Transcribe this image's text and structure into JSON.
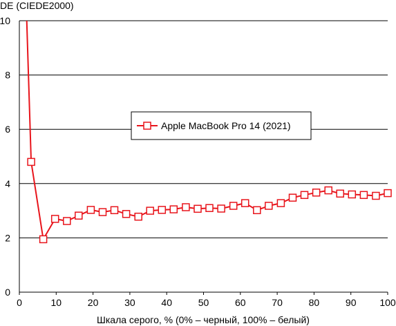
{
  "colors": {
    "series": "#e8141b",
    "grid": "#000000",
    "background": "#ffffff"
  },
  "chart_data": {
    "type": "line",
    "title": "",
    "ylabel": "DE (CIEDE2000)",
    "xlabel": "Шкала серого, % (0% – черный, 100% – белый)",
    "xlim": [
      0,
      100
    ],
    "ylim": [
      0,
      10
    ],
    "xticks": [
      "0",
      "10",
      "20",
      "30",
      "40",
      "50",
      "60",
      "70",
      "80",
      "90",
      "100"
    ],
    "yticks": [
      "0",
      "2",
      "4",
      "6",
      "8",
      "10"
    ],
    "grid": "horizontal",
    "legend": {
      "placement": "center-right",
      "entries": [
        "Apple MacBook Pro 14 (2021)"
      ]
    },
    "series": [
      {
        "name": "Apple MacBook Pro 14 (2021)",
        "marker": "open-square",
        "points": [
          {
            "x": 3.2,
            "y": 4.8
          },
          {
            "x": 6.5,
            "y": 1.95
          },
          {
            "x": 9.7,
            "y": 2.7
          },
          {
            "x": 12.9,
            "y": 2.62
          },
          {
            "x": 16.1,
            "y": 2.82
          },
          {
            "x": 19.4,
            "y": 3.03
          },
          {
            "x": 22.6,
            "y": 2.95
          },
          {
            "x": 25.8,
            "y": 3.02
          },
          {
            "x": 29.0,
            "y": 2.88
          },
          {
            "x": 32.3,
            "y": 2.78
          },
          {
            "x": 35.5,
            "y": 3.0
          },
          {
            "x": 38.7,
            "y": 3.03
          },
          {
            "x": 41.9,
            "y": 3.05
          },
          {
            "x": 45.2,
            "y": 3.13
          },
          {
            "x": 48.4,
            "y": 3.07
          },
          {
            "x": 51.6,
            "y": 3.1
          },
          {
            "x": 54.8,
            "y": 3.08
          },
          {
            "x": 58.1,
            "y": 3.18
          },
          {
            "x": 61.3,
            "y": 3.28
          },
          {
            "x": 64.5,
            "y": 3.02
          },
          {
            "x": 67.7,
            "y": 3.18
          },
          {
            "x": 71.0,
            "y": 3.28
          },
          {
            "x": 74.2,
            "y": 3.48
          },
          {
            "x": 77.4,
            "y": 3.58
          },
          {
            "x": 80.6,
            "y": 3.67
          },
          {
            "x": 83.9,
            "y": 3.75
          },
          {
            "x": 87.1,
            "y": 3.63
          },
          {
            "x": 90.3,
            "y": 3.6
          },
          {
            "x": 93.5,
            "y": 3.58
          },
          {
            "x": 96.8,
            "y": 3.55
          },
          {
            "x": 100,
            "y": 3.65
          }
        ],
        "offscale_start": {
          "x": 2.0,
          "y": 10
        }
      }
    ]
  }
}
